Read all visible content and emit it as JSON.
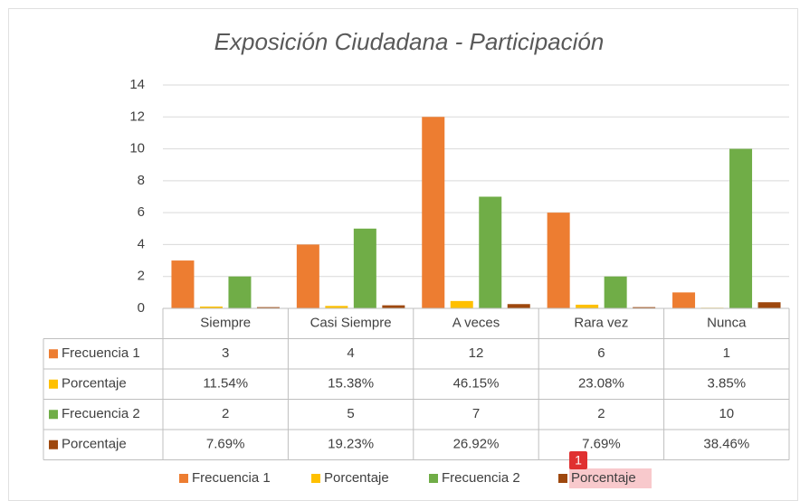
{
  "chart_data": {
    "type": "bar",
    "title": "Exposición Ciudadana - Participación",
    "categories": [
      "Siempre",
      "Casi Siempre",
      "A veces",
      "Rara vez",
      "Nunca"
    ],
    "series": [
      {
        "name": "Frecuencia 1",
        "color": "#ed7d31",
        "values": [
          3,
          4,
          12,
          6,
          1
        ]
      },
      {
        "name": "Porcentaje",
        "color": "#ffc000",
        "values": [
          0.1154,
          0.1538,
          0.4615,
          0.2308,
          0.0385
        ],
        "value_labels": [
          "11.54%",
          "15.38%",
          "46.15%",
          "23.08%",
          "3.85%"
        ]
      },
      {
        "name": "Frecuencia 2",
        "color": "#70ad47",
        "values": [
          2,
          5,
          7,
          2,
          10
        ]
      },
      {
        "name": "Porcentaje",
        "color": "#9e480e",
        "values": [
          0.0769,
          0.1923,
          0.2692,
          0.0769,
          0.3846
        ],
        "value_labels": [
          "7.69%",
          "19.23%",
          "26.92%",
          "7.69%",
          "38.46%"
        ]
      }
    ],
    "ylim": [
      0,
      14
    ],
    "yticks": [
      0,
      2,
      4,
      6,
      8,
      10,
      12,
      14
    ],
    "grid": true,
    "data_table": true,
    "legend": "bottom",
    "badge": "1"
  }
}
